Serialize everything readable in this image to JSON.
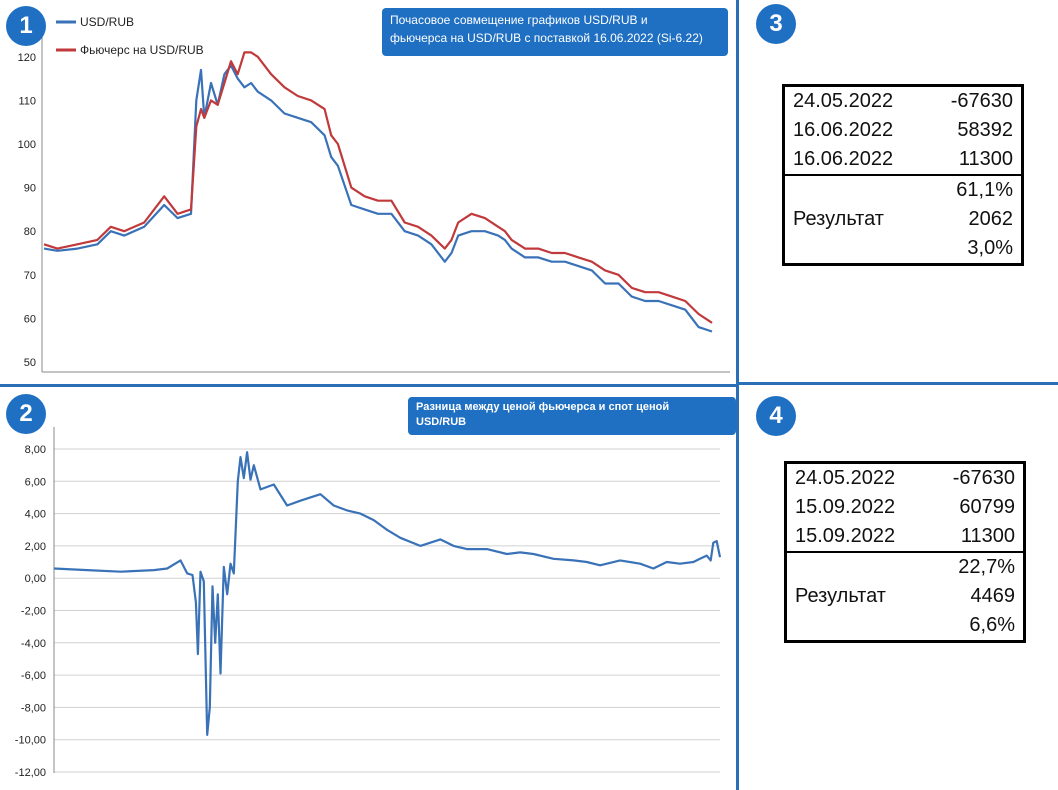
{
  "badges": {
    "p1": "1",
    "p2": "2",
    "p3": "3",
    "p4": "4"
  },
  "colors": {
    "usd": "#3a72b8",
    "fut": "#c0393b",
    "accent": "#1f6fc2"
  },
  "chart_data": [
    {
      "type": "line",
      "title": "Почасовое совмещение графиков USD/RUB и фьючерса на USD/RUB с поставкой 16.06.2022  (Si-6.22)",
      "title_lines": [
        "Почасовое совмещение графиков USD/RUB и",
        "фьючерса на USD/RUB с поставкой 16.06.2022  (Si-6.22)"
      ],
      "ylim": [
        50,
        125
      ],
      "yticks": [
        "120",
        "110",
        "100",
        "90",
        "80",
        "70",
        "60",
        "50"
      ],
      "grid": false,
      "legend": "top-left",
      "x": [
        0,
        2,
        5,
        8,
        10,
        12,
        15,
        18,
        20,
        22,
        22.8,
        23.5,
        24,
        25,
        26,
        27,
        28,
        29,
        30,
        31,
        32,
        34,
        36,
        38,
        40,
        42,
        43,
        44,
        46,
        48,
        50,
        52,
        54,
        56,
        58,
        60,
        61,
        62,
        64,
        66,
        68,
        69,
        70,
        72,
        74,
        76,
        78,
        80,
        82,
        84,
        86,
        88,
        90,
        92,
        94,
        96,
        98,
        100
      ],
      "series": [
        {
          "name": "USD/RUB",
          "values": [
            76,
            75.5,
            76,
            77,
            80,
            79,
            81,
            86,
            83,
            84,
            110,
            117,
            106,
            114,
            109,
            116,
            118,
            115,
            113,
            114,
            112,
            110,
            107,
            106,
            105,
            102,
            97,
            95,
            86,
            85,
            84,
            84,
            80,
            79,
            77,
            73,
            75,
            79,
            80,
            80,
            79,
            78,
            76,
            74,
            74,
            73,
            73,
            72,
            71,
            68,
            68,
            65,
            64,
            64,
            63,
            62,
            58,
            57
          ]
        },
        {
          "name": "Фьючерс на USD/RUB",
          "values": [
            77,
            76,
            77,
            78,
            81,
            80,
            82,
            88,
            84,
            85,
            104,
            108,
            106,
            110,
            109,
            114,
            119,
            116,
            121,
            121,
            120,
            116,
            113,
            111,
            110,
            108,
            102,
            100,
            90,
            88,
            87,
            87,
            82,
            81,
            79,
            76,
            78,
            82,
            84,
            83,
            81,
            80,
            78,
            76,
            76,
            75,
            75,
            74,
            73,
            71,
            70,
            67,
            66,
            66,
            65,
            64,
            61,
            59
          ]
        }
      ]
    },
    {
      "type": "line",
      "title": "Разница между ценой фьючерса и спот ценой USD/RUB",
      "title_lines": [
        "Разница между ценой фьючерса и спот ценой",
        "USD/RUB"
      ],
      "ylim": [
        -12,
        8
      ],
      "yticks": [
        "8,00",
        "6,00",
        "4,00",
        "2,00",
        "0,00",
        "-2,00",
        "-4,00",
        "-6,00",
        "-8,00",
        "-10,00",
        "-12,00"
      ],
      "grid": true,
      "x": [
        0,
        5,
        10,
        15,
        17,
        19,
        20,
        20.8,
        21.3,
        21.6,
        22,
        22.5,
        23,
        23.4,
        23.8,
        24.2,
        24.6,
        25,
        25.5,
        26,
        26.5,
        27,
        27.6,
        28,
        28.5,
        29,
        29.5,
        30,
        31,
        33,
        35,
        37,
        40,
        42,
        44,
        46,
        48,
        50,
        52,
        55,
        58,
        60,
        62,
        65,
        68,
        70,
        72,
        75,
        78,
        80,
        82,
        85,
        88,
        90,
        92,
        94,
        96,
        97,
        98,
        98.6,
        99,
        99.5,
        100
      ],
      "series": [
        {
          "name": "",
          "values": [
            0.6,
            0.5,
            0.4,
            0.5,
            0.6,
            1.1,
            0.3,
            0.2,
            -1.5,
            -4.7,
            0.4,
            -0.2,
            -9.7,
            -8.0,
            -0.5,
            -4.0,
            -1.0,
            -5.9,
            0.7,
            -1.0,
            0.9,
            0.3,
            6.0,
            7.5,
            6.2,
            7.8,
            6.1,
            7.0,
            5.5,
            5.8,
            4.5,
            4.8,
            5.2,
            4.5,
            4.2,
            4.0,
            3.6,
            3.0,
            2.5,
            2.0,
            2.4,
            2.0,
            1.8,
            1.8,
            1.5,
            1.6,
            1.5,
            1.2,
            1.1,
            1.0,
            0.8,
            1.1,
            0.9,
            0.6,
            1.0,
            0.9,
            1.0,
            1.2,
            1.4,
            1.1,
            2.2,
            2.3,
            1.3
          ]
        }
      ]
    }
  ],
  "table3": {
    "rows": [
      {
        "date": "24.05.2022",
        "value": "-67630"
      },
      {
        "date": "16.06.2022",
        "value": "58392"
      },
      {
        "date": "16.06.2022",
        "value": "11300"
      }
    ],
    "result_label": "Результат",
    "result_values": [
      "61,1%",
      "2062",
      "3,0%"
    ]
  },
  "table4": {
    "rows": [
      {
        "date": "24.05.2022",
        "value": "-67630"
      },
      {
        "date": "15.09.2022",
        "value": "60799"
      },
      {
        "date": "15.09.2022",
        "value": "11300"
      }
    ],
    "result_label": "Результат",
    "result_values": [
      "22,7%",
      "4469",
      "6,6%"
    ]
  }
}
